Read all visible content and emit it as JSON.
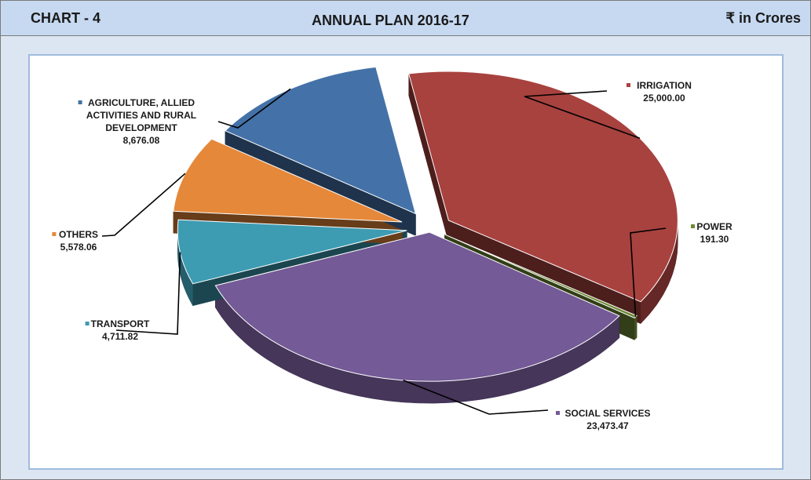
{
  "header": {
    "chart_label": "CHART - 4",
    "title": "ANNUAL PLAN 2016-17",
    "units": "₹ in Crores"
  },
  "chart_data": {
    "type": "pie",
    "title": "ANNUAL PLAN 2016-17",
    "units": "₹ in Crores",
    "legend": "none",
    "slices": [
      {
        "label": [
          "IRRIGATION"
        ],
        "value": 25000.0,
        "value_label": "25,000.00",
        "color": "#a8423f"
      },
      {
        "label": [
          "POWER"
        ],
        "value": 191.3,
        "value_label": "191.30",
        "color": "#6e8a34"
      },
      {
        "label": [
          "SOCIAL SERVICES"
        ],
        "value": 23473.47,
        "value_label": "23,473.47",
        "color": "#745a96"
      },
      {
        "label": [
          "TRANSPORT"
        ],
        "value": 4711.82,
        "value_label": "4,711.82",
        "color": "#3d9bb2"
      },
      {
        "label": [
          "OTHERS"
        ],
        "value": 5578.06,
        "value_label": "5,578.06",
        "color": "#e5883a"
      },
      {
        "label": [
          "AGRICULTURE, ALLIED",
          "ACTIVITIES AND RURAL",
          "DEVELOPMENT"
        ],
        "value": 8676.08,
        "value_label": "8,676.08",
        "color": "#4472a8"
      }
    ]
  }
}
